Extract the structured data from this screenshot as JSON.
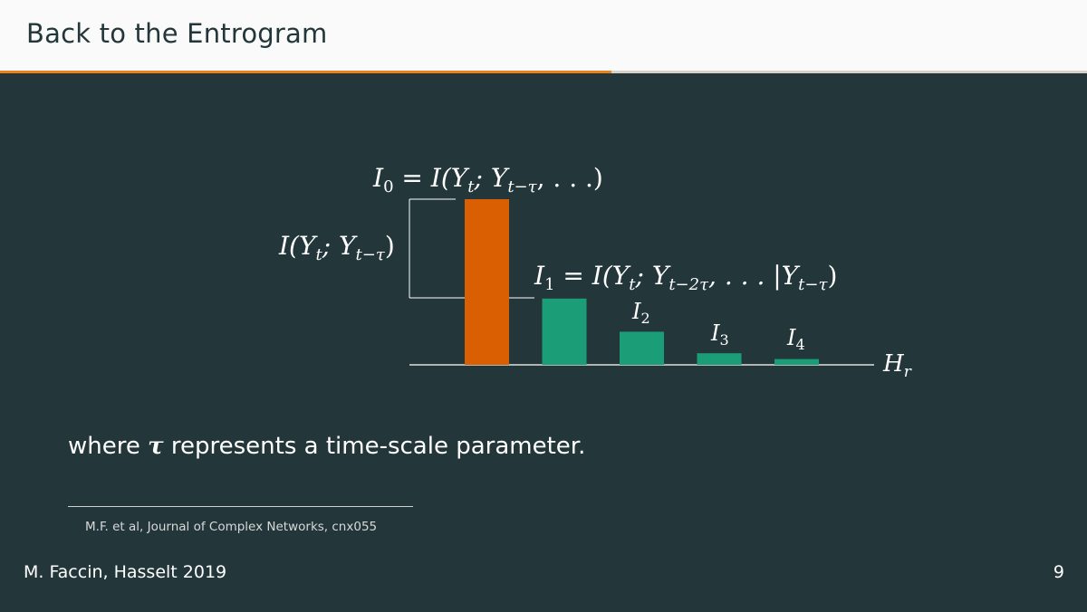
{
  "header": {
    "title": "Back to the Entrogram"
  },
  "progress": {
    "fraction": 0.5625
  },
  "colors": {
    "background": "#23373b",
    "accent": "#eb811b",
    "bar_first": "#d95f02",
    "bar_rest": "#1b9e77",
    "header_bg": "#fafafa"
  },
  "diagram": {
    "bar_heights": [
      1.0,
      0.4,
      0.2,
      0.07,
      0.035
    ],
    "labels": {
      "i0_lhs": "I",
      "i0_sub": "0",
      "i0_rhs_a": " = ",
      "i0_rhs_b": "I(Y",
      "i0_rhs_c": "t",
      "i0_rhs_d": "; Y",
      "i0_rhs_e": "t−τ",
      "i0_rhs_f": ", . . .)",
      "bracket_a": "I(Y",
      "bracket_b": "t",
      "bracket_c": "; Y",
      "bracket_d": "t−τ",
      "bracket_e": ")",
      "i1_a": "I",
      "i1_sub": "1",
      "i1_b": " = ",
      "i1_c": "I(Y",
      "i1_d": "t",
      "i1_e": "; Y",
      "i1_f": "t−2τ",
      "i1_g": ", . . . |Y",
      "i1_h": "t−τ",
      "i1_i": ")",
      "i2": "I",
      "i2_sub": "2",
      "i3": "I",
      "i3_sub": "3",
      "i4": "I",
      "i4_sub": "4",
      "axis": "H",
      "axis_sub": "r"
    }
  },
  "body": {
    "text_before": "where ",
    "tau": "τ",
    "text_after": " represents a time-scale parameter."
  },
  "footnote": {
    "text": "M.F. et al, Journal of Complex Networks, cnx055"
  },
  "footer": {
    "author": "M. Faccin, Hasselt 2019",
    "page": "9"
  }
}
